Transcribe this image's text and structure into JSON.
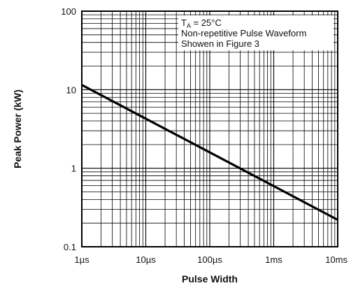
{
  "chart_data": {
    "type": "line",
    "x_scale": "log",
    "y_scale": "log",
    "xlabel": "Pulse Width",
    "ylabel": "Peak Power (kW)",
    "xlim": [
      "1µs",
      "10ms"
    ],
    "ylim": [
      0.1,
      100
    ],
    "x_ticks": [
      {
        "value": "1µs",
        "label": "1µs"
      },
      {
        "value": "10µs",
        "label": "10µs"
      },
      {
        "value": "100µs",
        "label": "100µs"
      },
      {
        "value": "1ms",
        "label": "1ms"
      },
      {
        "value": "10ms",
        "label": "10ms"
      }
    ],
    "y_ticks": [
      {
        "value": 0.1,
        "label": "0.1"
      },
      {
        "value": 1,
        "label": "1"
      },
      {
        "value": 10,
        "label": "10"
      },
      {
        "value": 100,
        "label": "100"
      }
    ],
    "grid": true,
    "series": [
      {
        "color": "#000000",
        "points": [
          {
            "x": "1µs",
            "y": 11.5
          },
          {
            "x": "10ms",
            "y": 0.22
          }
        ]
      }
    ],
    "annotation": {
      "line1_prefix": "T",
      "line1_sub": "A",
      "line1_rest": " = 25°C",
      "line2": "Non-repetitive Pulse Waveform",
      "line3": "Showen in Figure 3",
      "placement": "top-right"
    }
  }
}
